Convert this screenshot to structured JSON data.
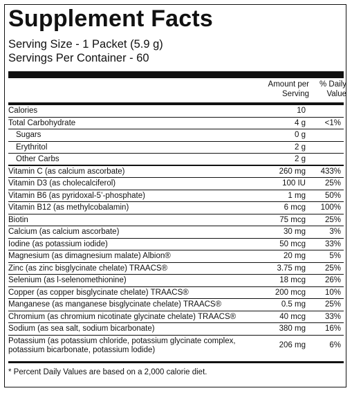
{
  "label": {
    "title": "Supplement Facts",
    "serving_size": "Serving Size - 1 Packet (5.9 g)",
    "servings_per_container": "Servings Per Container - 60",
    "amount_header_line1": "Amount per",
    "amount_header_line2": "Serving",
    "dv_header_line1": "% Daily",
    "dv_header_line2": "Value",
    "footnote": "* Percent Daily Values are based on a 2,000 calorie diet."
  },
  "rows": [
    {
      "name": "Calories",
      "amount": "10",
      "dv": ""
    },
    {
      "name": "Total Carbohydrate",
      "amount": "4 g",
      "dv": "<1%"
    },
    {
      "name": "Sugars",
      "amount": "0 g",
      "dv": ""
    },
    {
      "name": "Erythritol",
      "amount": "2 g",
      "dv": ""
    },
    {
      "name": "Other Carbs",
      "amount": "2 g",
      "dv": ""
    },
    {
      "name": "Vitamin C (as calcium ascorbate)",
      "amount": "260 mg",
      "dv": "433%"
    },
    {
      "name": "Vitamin D3 (as cholecalciferol)",
      "amount": "100 IU",
      "dv": "25%"
    },
    {
      "name": "Vitamin B6 (as pyridoxal-5’-phosphate)",
      "amount": "1 mg",
      "dv": "50%"
    },
    {
      "name": "Vitamin B12 (as methylcobalamin)",
      "amount": "6 mcg",
      "dv": "100%"
    },
    {
      "name": "Biotin",
      "amount": "75 mcg",
      "dv": "25%"
    },
    {
      "name": "Calcium (as calcium ascorbate)",
      "amount": "30 mg",
      "dv": "3%"
    },
    {
      "name": "Iodine (as potassium iodide)",
      "amount": "50 mcg",
      "dv": "33%"
    },
    {
      "name": "Magnesium (as dimagnesium malate) Albion®",
      "amount": "20 mg",
      "dv": "5%"
    },
    {
      "name": "Zinc (as zinc bisglycinate chelate) TRAACS®",
      "amount": "3.75 mg",
      "dv": "25%"
    },
    {
      "name": "Selenium (as l-selenomethionine)",
      "amount": "18 mcg",
      "dv": "26%"
    },
    {
      "name": "Copper (as copper bisglycinate chelate) TRAACS®",
      "amount": "200 mcg",
      "dv": "10%"
    },
    {
      "name": "Manganese (as manganese  bisglycinate chelate) TRAACS®",
      "amount": "0.5 mg",
      "dv": "25%"
    },
    {
      "name": "Chromium (as chromium nicotinate glycinate chelate) TRAACS®",
      "amount": "40 mcg",
      "dv": "33%"
    },
    {
      "name": "Sodium (as sea salt, sodium bicarbonate)",
      "amount": "380 mg",
      "dv": "16%"
    },
    {
      "name": "Potassium (as potassium chloride, potassium glycinate complex,\npotassium bicarbonate, potassium lodide)",
      "amount": "206 mg",
      "dv": "6%"
    }
  ]
}
